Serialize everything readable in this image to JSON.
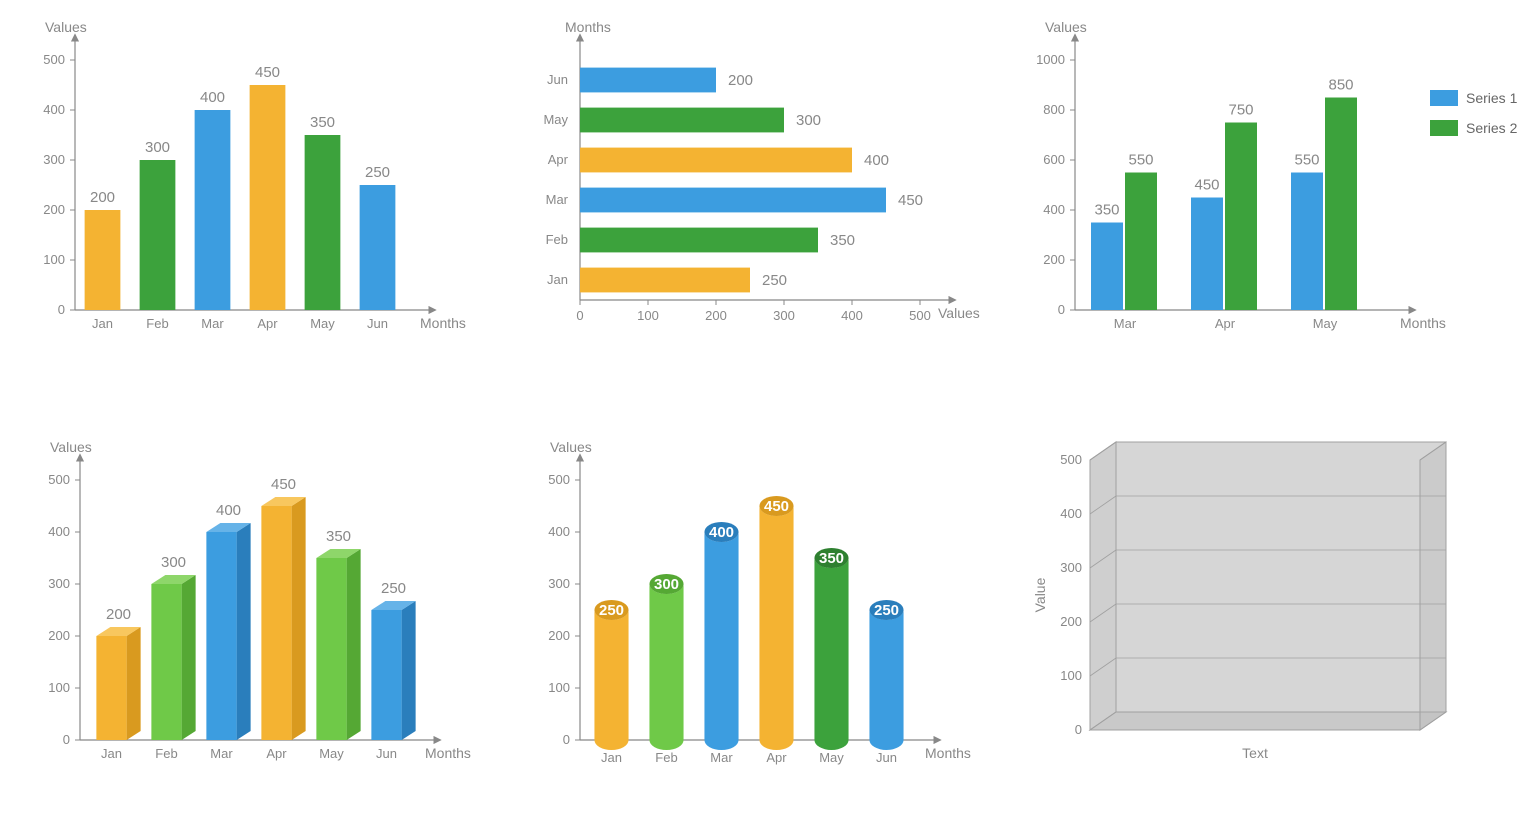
{
  "colors": {
    "orange": "#f4b332",
    "orange_dark": "#d99a1f",
    "green": "#3ca23c",
    "green_dark": "#2e8030",
    "green_light": "#6fc948",
    "green_light_dark": "#55a834",
    "blue": "#3c9de0",
    "blue_dark": "#2a7ebc",
    "axis": "#888888",
    "bg": "#ffffff",
    "floor": "#c9c9c9",
    "wall": "#d6d6d6",
    "grid3d": "#a0a0a0"
  },
  "chart1": {
    "type": "bar",
    "ylabel": "Values",
    "xlabel": "Months",
    "ylim": [
      0,
      500
    ],
    "ytick_step": 100,
    "categories": [
      "Jan",
      "Feb",
      "Mar",
      "Apr",
      "May",
      "Jun"
    ],
    "values": [
      200,
      300,
      400,
      450,
      350,
      250
    ],
    "bar_colors": [
      "#f4b332",
      "#3ca23c",
      "#3c9de0",
      "#f4b332",
      "#3ca23c",
      "#3c9de0"
    ]
  },
  "chart2": {
    "type": "hbar",
    "ylabel": "Months",
    "xlabel": "Values",
    "xlim": [
      0,
      500
    ],
    "xtick_step": 100,
    "categories": [
      "Jan",
      "Feb",
      "Mar",
      "Apr",
      "May",
      "Jun"
    ],
    "values": [
      250,
      350,
      450,
      400,
      300,
      200
    ],
    "bar_colors": [
      "#f4b332",
      "#3ca23c",
      "#3c9de0",
      "#f4b332",
      "#3ca23c",
      "#3c9de0"
    ]
  },
  "chart3": {
    "type": "grouped-bar",
    "ylabel": "Values",
    "xlabel": "Months",
    "ylim": [
      0,
      1000
    ],
    "ytick_step": 200,
    "categories": [
      "Mar",
      "Apr",
      "May"
    ],
    "series": [
      {
        "name": "Series 1",
        "color": "#3c9de0",
        "values": [
          350,
          450,
          550
        ]
      },
      {
        "name": "Series 2",
        "color": "#3ca23c",
        "values": [
          550,
          750,
          850
        ]
      }
    ]
  },
  "chart4": {
    "type": "bar-3d",
    "ylabel": "Values",
    "xlabel": "Months",
    "ylim": [
      0,
      500
    ],
    "ytick_step": 100,
    "categories": [
      "Jan",
      "Feb",
      "Mar",
      "Apr",
      "May",
      "Jun"
    ],
    "values": [
      200,
      300,
      400,
      450,
      350,
      250
    ],
    "bar_colors": [
      "#f4b332",
      "#6fc948",
      "#3c9de0",
      "#f4b332",
      "#6fc948",
      "#3c9de0"
    ],
    "bar_colors_side": [
      "#d99a1f",
      "#55a834",
      "#2a7ebc",
      "#d99a1f",
      "#55a834",
      "#2a7ebc"
    ],
    "bar_colors_top": [
      "#f8c75e",
      "#8ed66a",
      "#66b3e8",
      "#f8c75e",
      "#8ed66a",
      "#66b3e8"
    ]
  },
  "chart5": {
    "type": "cylinder",
    "ylabel": "Values",
    "xlabel": "Months",
    "ylim": [
      0,
      500
    ],
    "ytick_step": 100,
    "categories": [
      "Jan",
      "Feb",
      "Mar",
      "Apr",
      "May",
      "Jun"
    ],
    "values": [
      250,
      300,
      400,
      450,
      350,
      250
    ],
    "bar_colors": [
      "#f4b332",
      "#6fc948",
      "#3c9de0",
      "#f4b332",
      "#3ca23c",
      "#3c9de0"
    ],
    "bar_colors_top": [
      "#d99a1f",
      "#55a834",
      "#2a7ebc",
      "#d99a1f",
      "#2e8030",
      "#2a7ebc"
    ]
  },
  "chart6": {
    "type": "empty-3d-box",
    "ylabel": "Value",
    "xlabel": "Text",
    "ylim": [
      0,
      500
    ],
    "ytick_step": 100
  }
}
